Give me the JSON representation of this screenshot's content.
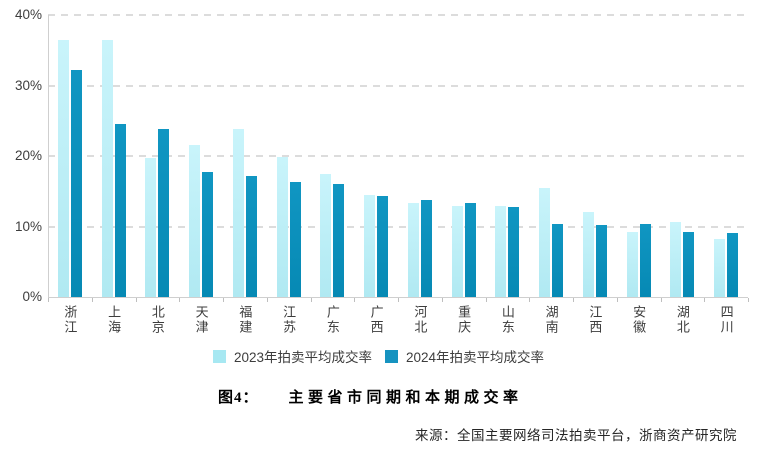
{
  "figure": {
    "caption_prefix": "图4：",
    "caption_text": "主要省市同期和本期成交率",
    "source": "来源：全国主要网络司法拍卖平台，浙商资产研究院"
  },
  "colors": {
    "series_2023_top": "#c9f4fb",
    "series_2023_bottom": "#b0e9f2",
    "series_2024_top": "#1096c2",
    "series_2024_bottom": "#0689b4",
    "legend_2023": "#a7e8f2",
    "legend_2024": "#1693c0",
    "gridline": "#dcdcdc",
    "axis_line": "#cfcfcf",
    "text": "#3d3d3d"
  },
  "chart_data": {
    "type": "bar",
    "title": "",
    "categories": [
      "浙江",
      "上海",
      "北京",
      "天津",
      "福建",
      "江苏",
      "广东",
      "广西",
      "河北",
      "重庆",
      "山东",
      "湖南",
      "江西",
      "安徽",
      "湖北",
      "四川"
    ],
    "series": [
      {
        "name": "2023年拍卖平均成交率",
        "values": [
          36.4,
          36.4,
          19.7,
          21.6,
          23.9,
          19.8,
          17.5,
          14.5,
          13.3,
          12.9,
          12.9,
          15.4,
          12.0,
          9.2,
          10.6,
          8.3
        ]
      },
      {
        "name": "2024年拍卖平均成交率",
        "values": [
          32.2,
          24.6,
          23.8,
          17.7,
          17.2,
          16.3,
          16.0,
          14.3,
          13.8,
          13.4,
          12.8,
          10.4,
          10.2,
          10.3,
          9.2,
          9.1
        ]
      }
    ],
    "ylim": [
      0,
      40
    ],
    "y_ticks": [
      "0%",
      "10%",
      "20%",
      "30%",
      "40%"
    ],
    "y_unit": "%",
    "grid": "horizontal-dashed",
    "legend_position": "bottom"
  }
}
